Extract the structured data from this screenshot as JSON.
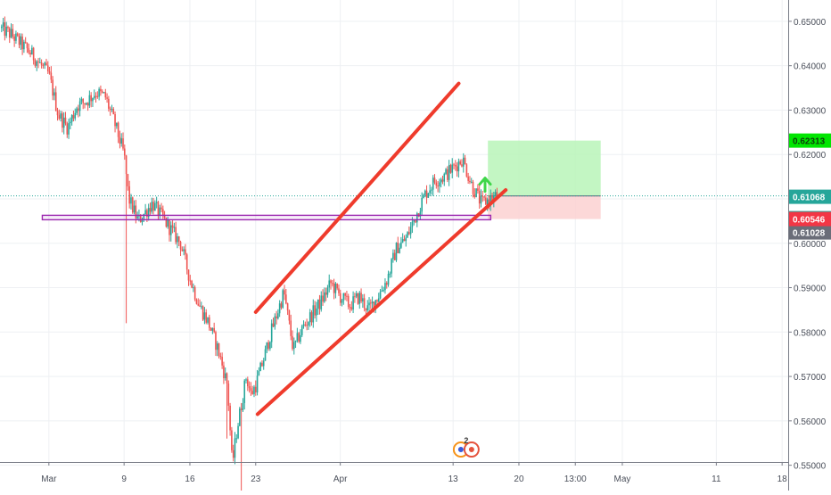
{
  "colors": {
    "up": "#26a69a",
    "down": "#ef5350",
    "channel": "#ef3b2c",
    "current_line": "#26a69a",
    "target_zone": "#b9f5b9",
    "stop_zone": "#fcd1d1",
    "zone_divider": "#787b86",
    "support_box": "#9c27b0",
    "arrow": "#3fd64a",
    "grid": "#eef0f3",
    "axis_text": "#4a4f5a",
    "tag_target": "#00e600",
    "tag_price": "#26a69a",
    "tag_close": "#6a6d78",
    "tag_stop": "#f23645"
  },
  "chart_data": {
    "type": "candlestick",
    "symbol_badge_digit": "2",
    "y_axis": {
      "range": [
        0.5443,
        0.6548
      ],
      "ticks": [
        "0.65000",
        "0.64000",
        "0.63000",
        "0.62000",
        "0.61000",
        "0.60000",
        "0.59000",
        "0.58000",
        "0.57000",
        "0.56000",
        "0.55000"
      ]
    },
    "x_axis": {
      "ticks": [
        {
          "label": "Mar",
          "day": 0
        },
        {
          "label": "9",
          "day": 8
        },
        {
          "label": "16",
          "day": 15
        },
        {
          "label": "23",
          "day": 22
        },
        {
          "label": "Apr",
          "day": 31
        },
        {
          "label": "13",
          "day": 43
        },
        {
          "label": "20",
          "day": 50
        },
        {
          "label": "13:00",
          "day": 56
        },
        {
          "label": "May",
          "day": 61
        },
        {
          "label": "11",
          "day": 71
        },
        {
          "label": "18",
          "day": 78
        }
      ],
      "day_range": [
        -5.2,
        83.2
      ]
    },
    "price_tags": {
      "target": "0.62313",
      "current": "0.61068",
      "countdown": "02:22:29",
      "close": "0.61028",
      "stop": "0.60546"
    },
    "current_price": 0.61068,
    "anchors": [
      [
        -5.2,
        0.6485
      ],
      [
        -4,
        0.647
      ],
      [
        -2,
        0.643
      ],
      [
        0,
        0.638
      ],
      [
        1,
        0.629
      ],
      [
        2,
        0.626
      ],
      [
        3,
        0.631
      ],
      [
        4,
        0.632
      ],
      [
        5,
        0.634
      ],
      [
        6,
        0.633
      ],
      [
        7,
        0.627
      ],
      [
        8,
        0.62
      ],
      [
        8.5,
        0.61
      ],
      [
        9.5,
        0.605
      ],
      [
        11,
        0.609
      ],
      [
        12,
        0.606
      ],
      [
        13,
        0.603
      ],
      [
        14,
        0.6
      ],
      [
        15,
        0.592
      ],
      [
        16,
        0.586
      ],
      [
        17,
        0.582
      ],
      [
        18,
        0.576
      ],
      [
        19,
        0.568
      ],
      [
        19.5,
        0.55
      ],
      [
        20,
        0.558
      ],
      [
        21,
        0.57
      ],
      [
        21.5,
        0.566
      ],
      [
        22,
        0.568
      ],
      [
        23,
        0.575
      ],
      [
        23.5,
        0.579
      ],
      [
        25,
        0.589
      ],
      [
        26,
        0.576
      ],
      [
        27,
        0.581
      ],
      [
        28,
        0.584
      ],
      [
        29,
        0.587
      ],
      [
        30,
        0.591
      ],
      [
        31,
        0.588
      ],
      [
        32,
        0.586
      ],
      [
        33,
        0.588
      ],
      [
        34,
        0.585
      ],
      [
        35,
        0.588
      ],
      [
        36,
        0.592
      ],
      [
        37,
        0.599
      ],
      [
        38,
        0.601
      ],
      [
        39,
        0.606
      ],
      [
        40,
        0.611
      ],
      [
        41,
        0.614
      ],
      [
        42,
        0.615
      ],
      [
        43,
        0.617
      ],
      [
        44,
        0.619
      ],
      [
        45,
        0.613
      ],
      [
        46,
        0.609
      ],
      [
        47,
        0.61
      ],
      [
        47.7,
        0.6107
      ]
    ],
    "annotations": {
      "channel_upper": [
        [
          22.0,
          0.5845
        ],
        [
          43.6,
          0.636
        ]
      ],
      "channel_lower": [
        [
          22.2,
          0.5615
        ],
        [
          48.6,
          0.612
        ]
      ],
      "support_box": {
        "x": [
          -0.7,
          47.0
        ],
        "y": [
          0.6053,
          0.6063
        ]
      },
      "position": {
        "x": [
          46.7,
          58.7
        ],
        "entry": 0.61068,
        "target": 0.62313,
        "stop": 0.60546
      },
      "arrow_at": [
        46.4,
        0.6135
      ],
      "spikes": [
        {
          "day": 8.3,
          "low": 0.582
        },
        {
          "day": 20.5,
          "low": 0.5443
        },
        {
          "day": 19.0,
          "low": 0.556
        }
      ]
    }
  }
}
